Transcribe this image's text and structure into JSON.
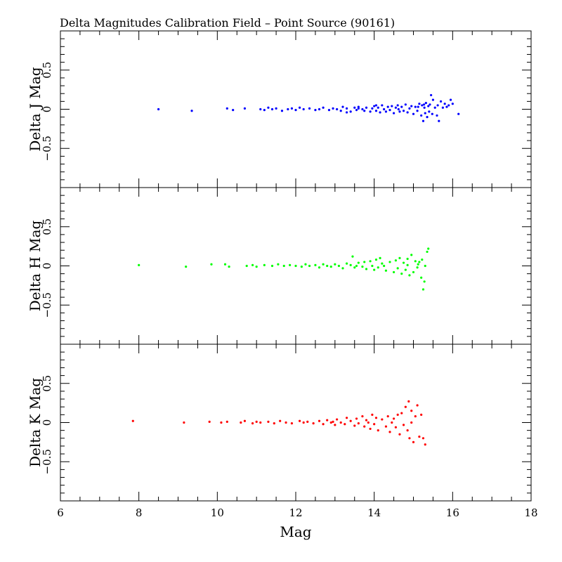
{
  "chart_data": {
    "type": "scatter",
    "title": "Delta Magnitudes Calibration Field – Point Source (90161)",
    "xlabel": "Mag",
    "xlim": [
      6,
      18
    ],
    "x_ticks": [
      6,
      8,
      10,
      12,
      14,
      16,
      18
    ],
    "x_tick_labels": [
      "6",
      "8",
      "10",
      "12",
      "14",
      "16",
      "18"
    ],
    "ylim": [
      -1,
      1
    ],
    "y_ticks": [
      -0.5,
      0,
      0.5
    ],
    "y_tick_labels": [
      "−0.5",
      "0",
      "0.5"
    ],
    "grid": false,
    "panels": [
      {
        "ylabel": "Delta J Mag",
        "color": "#0000ff",
        "points": [
          [
            8.5,
            0.0
          ],
          [
            9.35,
            -0.02
          ],
          [
            10.25,
            0.01
          ],
          [
            10.4,
            -0.01
          ],
          [
            10.7,
            0.01
          ],
          [
            11.1,
            0.0
          ],
          [
            11.2,
            -0.01
          ],
          [
            11.3,
            0.02
          ],
          [
            11.4,
            0.0
          ],
          [
            11.5,
            0.01
          ],
          [
            11.65,
            -0.02
          ],
          [
            11.8,
            0.0
          ],
          [
            11.9,
            0.01
          ],
          [
            12.0,
            -0.01
          ],
          [
            12.1,
            0.02
          ],
          [
            12.2,
            0.0
          ],
          [
            12.35,
            0.01
          ],
          [
            12.5,
            -0.01
          ],
          [
            12.6,
            0.0
          ],
          [
            12.7,
            0.02
          ],
          [
            12.85,
            -0.01
          ],
          [
            12.95,
            0.01
          ],
          [
            13.05,
            0.0
          ],
          [
            13.15,
            -0.02
          ],
          [
            13.2,
            0.03
          ],
          [
            13.3,
            0.01
          ],
          [
            13.4,
            -0.03
          ],
          [
            13.5,
            0.02
          ],
          [
            13.55,
            -0.01
          ],
          [
            13.6,
            0.03
          ],
          [
            13.7,
            0.0
          ],
          [
            13.75,
            -0.02
          ],
          [
            13.8,
            0.02
          ],
          [
            13.9,
            -0.03
          ],
          [
            13.95,
            0.01
          ],
          [
            14.0,
            0.04
          ],
          [
            14.05,
            -0.02
          ],
          [
            14.1,
            0.02
          ],
          [
            14.15,
            -0.04
          ],
          [
            14.2,
            0.05
          ],
          [
            14.25,
            0.0
          ],
          [
            14.3,
            -0.03
          ],
          [
            14.35,
            0.03
          ],
          [
            14.4,
            -0.01
          ],
          [
            14.45,
            0.04
          ],
          [
            14.5,
            -0.05
          ],
          [
            14.55,
            0.02
          ],
          [
            14.6,
            0.05
          ],
          [
            14.65,
            -0.03
          ],
          [
            14.7,
            0.03
          ],
          [
            14.75,
            -0.02
          ],
          [
            14.8,
            0.06
          ],
          [
            14.85,
            -0.04
          ],
          [
            14.9,
            0.01
          ],
          [
            14.95,
            0.04
          ],
          [
            15.0,
            -0.06
          ],
          [
            15.05,
            0.03
          ],
          [
            15.1,
            -0.02
          ],
          [
            15.15,
            0.07
          ],
          [
            15.2,
            -0.08
          ],
          [
            15.22,
            0.05
          ],
          [
            15.25,
            -0.15
          ],
          [
            15.28,
            0.02
          ],
          [
            15.3,
            -0.05
          ],
          [
            15.32,
            0.08
          ],
          [
            15.35,
            -0.1
          ],
          [
            15.38,
            0.04
          ],
          [
            15.4,
            -0.03
          ],
          [
            15.42,
            0.06
          ],
          [
            15.45,
            0.18
          ],
          [
            15.48,
            -0.06
          ],
          [
            15.5,
            0.12
          ],
          [
            15.55,
            0.02
          ],
          [
            15.6,
            -0.08
          ],
          [
            15.62,
            0.05
          ],
          [
            15.65,
            -0.15
          ],
          [
            15.7,
            0.1
          ],
          [
            15.75,
            0.02
          ],
          [
            15.8,
            0.07
          ],
          [
            15.85,
            0.03
          ],
          [
            15.9,
            0.05
          ],
          [
            15.95,
            0.12
          ],
          [
            16.0,
            0.07
          ],
          [
            16.15,
            -0.06
          ],
          [
            13.3,
            -0.04
          ],
          [
            13.6,
            0.01
          ],
          [
            14.05,
            0.05
          ],
          [
            14.62,
            0.0
          ],
          [
            15.12,
            0.03
          ],
          [
            15.27,
            0.06
          ]
        ]
      },
      {
        "ylabel": "Delta H Mag",
        "color": "#00ff00",
        "points": [
          [
            8.0,
            0.01
          ],
          [
            9.2,
            -0.01
          ],
          [
            9.85,
            0.02
          ],
          [
            10.2,
            0.02
          ],
          [
            10.3,
            -0.01
          ],
          [
            10.75,
            0.0
          ],
          [
            10.9,
            0.01
          ],
          [
            11.0,
            -0.01
          ],
          [
            11.2,
            0.01
          ],
          [
            11.4,
            0.0
          ],
          [
            11.55,
            0.02
          ],
          [
            11.7,
            0.0
          ],
          [
            11.85,
            0.01
          ],
          [
            12.0,
            0.0
          ],
          [
            12.15,
            -0.01
          ],
          [
            12.25,
            0.02
          ],
          [
            12.35,
            0.0
          ],
          [
            12.5,
            0.01
          ],
          [
            12.6,
            -0.02
          ],
          [
            12.7,
            0.02
          ],
          [
            12.8,
            0.0
          ],
          [
            12.9,
            -0.01
          ],
          [
            13.0,
            0.02
          ],
          [
            13.1,
            0.0
          ],
          [
            13.2,
            -0.03
          ],
          [
            13.3,
            0.03
          ],
          [
            13.4,
            0.01
          ],
          [
            13.45,
            0.12
          ],
          [
            13.5,
            -0.02
          ],
          [
            13.6,
            0.04
          ],
          [
            13.7,
            -0.01
          ],
          [
            13.75,
            0.05
          ],
          [
            13.8,
            -0.04
          ],
          [
            13.9,
            0.06
          ],
          [
            13.95,
            0.0
          ],
          [
            14.0,
            -0.05
          ],
          [
            14.05,
            0.08
          ],
          [
            14.1,
            -0.02
          ],
          [
            14.15,
            0.1
          ],
          [
            14.2,
            0.03
          ],
          [
            14.3,
            -0.06
          ],
          [
            14.4,
            0.05
          ],
          [
            14.5,
            -0.08
          ],
          [
            14.55,
            0.07
          ],
          [
            14.6,
            -0.03
          ],
          [
            14.65,
            0.1
          ],
          [
            14.7,
            -0.1
          ],
          [
            14.75,
            0.04
          ],
          [
            14.8,
            -0.05
          ],
          [
            14.85,
            0.09
          ],
          [
            14.9,
            -0.12
          ],
          [
            14.95,
            0.14
          ],
          [
            15.0,
            -0.08
          ],
          [
            15.05,
            0.06
          ],
          [
            15.1,
            -0.02
          ],
          [
            15.15,
            0.05
          ],
          [
            15.2,
            -0.15
          ],
          [
            15.22,
            0.08
          ],
          [
            15.25,
            -0.3
          ],
          [
            15.28,
            -0.2
          ],
          [
            15.3,
            0.0
          ],
          [
            15.35,
            0.18
          ],
          [
            15.38,
            0.22
          ],
          [
            13.55,
            0.0
          ],
          [
            14.25,
            0.0
          ],
          [
            14.85,
            0.01
          ],
          [
            15.12,
            0.02
          ]
        ]
      },
      {
        "ylabel": "Delta K Mag",
        "color": "#ff0000",
        "points": [
          [
            7.85,
            0.02
          ],
          [
            9.15,
            0.0
          ],
          [
            9.8,
            0.01
          ],
          [
            10.1,
            0.0
          ],
          [
            10.25,
            0.01
          ],
          [
            10.6,
            0.0
          ],
          [
            10.7,
            0.02
          ],
          [
            10.9,
            -0.01
          ],
          [
            11.0,
            0.01
          ],
          [
            11.1,
            0.0
          ],
          [
            11.3,
            0.01
          ],
          [
            11.45,
            -0.01
          ],
          [
            11.6,
            0.02
          ],
          [
            11.75,
            0.0
          ],
          [
            11.9,
            -0.01
          ],
          [
            12.1,
            0.02
          ],
          [
            12.2,
            0.0
          ],
          [
            12.3,
            0.01
          ],
          [
            12.45,
            -0.01
          ],
          [
            12.6,
            0.02
          ],
          [
            12.7,
            -0.02
          ],
          [
            12.8,
            0.03
          ],
          [
            12.9,
            0.0
          ],
          [
            13.0,
            -0.03
          ],
          [
            13.05,
            0.04
          ],
          [
            13.15,
            0.0
          ],
          [
            13.25,
            -0.02
          ],
          [
            13.3,
            0.06
          ],
          [
            13.4,
            0.02
          ],
          [
            13.5,
            -0.04
          ],
          [
            13.55,
            0.05
          ],
          [
            13.6,
            -0.01
          ],
          [
            13.7,
            0.08
          ],
          [
            13.75,
            -0.05
          ],
          [
            13.8,
            0.03
          ],
          [
            13.9,
            -0.08
          ],
          [
            13.95,
            0.1
          ],
          [
            14.0,
            -0.02
          ],
          [
            14.05,
            0.06
          ],
          [
            14.1,
            -0.1
          ],
          [
            14.2,
            0.04
          ],
          [
            14.3,
            -0.05
          ],
          [
            14.35,
            0.08
          ],
          [
            14.4,
            -0.12
          ],
          [
            14.5,
            0.05
          ],
          [
            14.55,
            -0.06
          ],
          [
            14.6,
            0.1
          ],
          [
            14.65,
            -0.15
          ],
          [
            14.7,
            0.12
          ],
          [
            14.75,
            -0.03
          ],
          [
            14.8,
            0.2
          ],
          [
            14.85,
            -0.1
          ],
          [
            14.88,
            0.27
          ],
          [
            14.9,
            -0.2
          ],
          [
            14.95,
            0.15
          ],
          [
            15.0,
            -0.25
          ],
          [
            15.05,
            0.08
          ],
          [
            15.1,
            0.22
          ],
          [
            15.15,
            -0.18
          ],
          [
            15.2,
            0.1
          ],
          [
            15.25,
            -0.2
          ],
          [
            15.3,
            -0.28
          ],
          [
            13.85,
            0.0
          ],
          [
            14.45,
            0.0
          ],
          [
            14.95,
            0.0
          ],
          [
            12.95,
            0.01
          ]
        ]
      }
    ]
  }
}
